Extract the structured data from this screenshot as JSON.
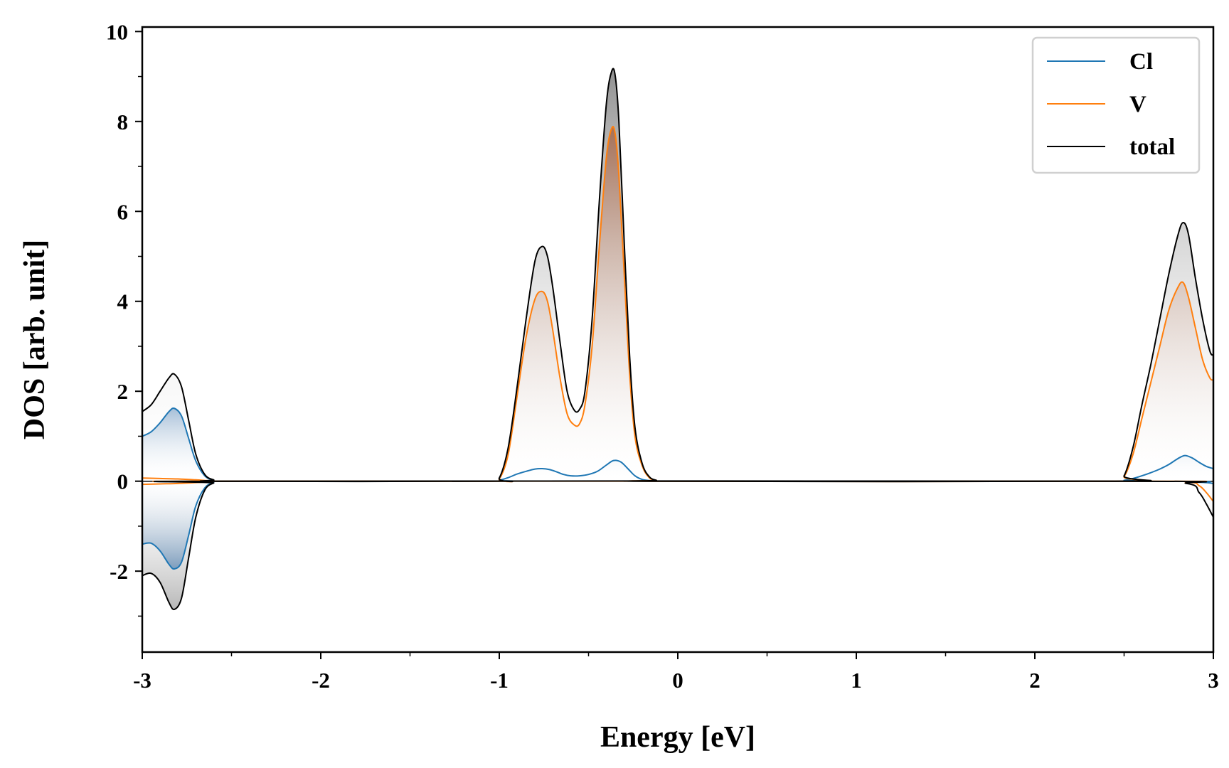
{
  "chart_data": {
    "type": "area",
    "title": "",
    "xlabel": "Energy [eV]",
    "ylabel": "DOS [arb. unit]",
    "xlim": [
      -3,
      3
    ],
    "ylim": [
      -3.8,
      10.1
    ],
    "xticks": [
      -3,
      -2,
      -1,
      0,
      1,
      2,
      3
    ],
    "xtick_labels": [
      "-3",
      "-2",
      "-1",
      "0",
      "1",
      "2",
      "3"
    ],
    "yticks": [
      -2,
      0,
      2,
      4,
      6,
      8,
      10
    ],
    "ytick_labels": [
      "-2",
      "0",
      "2",
      "4",
      "6",
      "8",
      "10"
    ],
    "grid": false,
    "legend_position": "top-right",
    "series": [
      {
        "name": "Cl",
        "color": "#1f77b4",
        "up": {
          "x": [
            -3.0,
            -2.95,
            -2.9,
            -2.85,
            -2.82,
            -2.78,
            -2.74,
            -2.7,
            -2.65,
            -2.6,
            -2.55,
            -1.05,
            -1.0,
            -0.95,
            -0.9,
            -0.85,
            -0.8,
            -0.76,
            -0.72,
            -0.68,
            -0.64,
            -0.6,
            -0.55,
            -0.5,
            -0.45,
            -0.4,
            -0.36,
            -0.32,
            -0.28,
            -0.24,
            -0.2,
            -0.15,
            -0.1,
            2.45,
            2.5,
            2.55,
            2.6,
            2.65,
            2.7,
            2.75,
            2.8,
            2.84,
            2.88,
            2.92,
            2.96,
            3.0
          ],
          "y": [
            1.0,
            1.1,
            1.3,
            1.55,
            1.62,
            1.45,
            0.95,
            0.45,
            0.12,
            0.02,
            0.0,
            0.0,
            0.02,
            0.08,
            0.16,
            0.22,
            0.27,
            0.28,
            0.26,
            0.21,
            0.15,
            0.12,
            0.12,
            0.15,
            0.22,
            0.36,
            0.46,
            0.43,
            0.28,
            0.12,
            0.04,
            0.01,
            0.0,
            0.0,
            0.02,
            0.06,
            0.12,
            0.19,
            0.27,
            0.37,
            0.5,
            0.57,
            0.52,
            0.42,
            0.33,
            0.28
          ]
        },
        "down": {
          "x": [
            -3.0,
            -2.95,
            -2.9,
            -2.85,
            -2.82,
            -2.78,
            -2.74,
            -2.7,
            -2.65,
            -2.6,
            -2.55,
            2.45,
            2.9,
            3.0
          ],
          "y": [
            -1.4,
            -1.38,
            -1.55,
            -1.85,
            -1.95,
            -1.8,
            -1.2,
            -0.55,
            -0.15,
            -0.03,
            0.0,
            0.0,
            -0.02,
            -0.05
          ]
        }
      },
      {
        "name": "V",
        "color": "#ff7f0e",
        "up": {
          "x": [
            -3.0,
            -2.9,
            -2.8,
            -2.7,
            -2.62,
            -2.55,
            -1.05,
            -1.0,
            -0.95,
            -0.9,
            -0.85,
            -0.8,
            -0.76,
            -0.73,
            -0.7,
            -0.66,
            -0.62,
            -0.58,
            -0.55,
            -0.52,
            -0.48,
            -0.44,
            -0.4,
            -0.37,
            -0.35,
            -0.33,
            -0.3,
            -0.27,
            -0.24,
            -0.2,
            -0.16,
            -0.12,
            -0.08,
            2.45,
            2.5,
            2.55,
            2.6,
            2.65,
            2.7,
            2.75,
            2.8,
            2.83,
            2.86,
            2.9,
            2.94,
            2.98,
            3.0
          ],
          "y": [
            0.07,
            0.06,
            0.05,
            0.03,
            0.01,
            0.0,
            0.0,
            0.05,
            0.6,
            1.9,
            3.2,
            4.05,
            4.22,
            4.0,
            3.35,
            2.3,
            1.5,
            1.25,
            1.28,
            1.7,
            3.0,
            5.2,
            7.2,
            7.85,
            7.7,
            6.8,
            4.6,
            2.4,
            1.0,
            0.35,
            0.08,
            0.02,
            0.0,
            0.0,
            0.1,
            0.6,
            1.4,
            2.2,
            3.0,
            3.8,
            4.3,
            4.42,
            4.1,
            3.4,
            2.7,
            2.3,
            2.25
          ]
        },
        "down": {
          "x": [
            -3.0,
            -2.9,
            -2.8,
            -2.7,
            -2.62,
            -2.55,
            2.45,
            2.85,
            2.92,
            2.96,
            3.0
          ],
          "y": [
            -0.07,
            -0.06,
            -0.05,
            -0.03,
            -0.01,
            0.0,
            0.0,
            -0.02,
            -0.1,
            -0.25,
            -0.45
          ]
        }
      },
      {
        "name": "total",
        "color": "#000000",
        "up": {
          "x": [
            -3.0,
            -2.95,
            -2.9,
            -2.85,
            -2.82,
            -2.78,
            -2.74,
            -2.7,
            -2.65,
            -2.6,
            -2.55,
            -1.05,
            -1.0,
            -0.95,
            -0.9,
            -0.85,
            -0.8,
            -0.76,
            -0.73,
            -0.7,
            -0.66,
            -0.62,
            -0.58,
            -0.55,
            -0.52,
            -0.48,
            -0.44,
            -0.4,
            -0.37,
            -0.35,
            -0.33,
            -0.3,
            -0.27,
            -0.24,
            -0.2,
            -0.16,
            -0.12,
            -0.08,
            2.45,
            2.5,
            2.55,
            2.6,
            2.65,
            2.7,
            2.75,
            2.8,
            2.83,
            2.86,
            2.9,
            2.94,
            2.98,
            3.0
          ],
          "y": [
            1.55,
            1.7,
            2.0,
            2.3,
            2.38,
            2.1,
            1.35,
            0.6,
            0.15,
            0.03,
            0.0,
            0.0,
            0.07,
            0.75,
            2.1,
            3.6,
            4.9,
            5.22,
            5.0,
            4.3,
            3.1,
            2.0,
            1.58,
            1.6,
            2.0,
            3.6,
            6.2,
            8.4,
            9.12,
            9.0,
            8.0,
            5.3,
            2.8,
            1.2,
            0.4,
            0.1,
            0.02,
            0.0,
            0.0,
            0.12,
            0.75,
            1.7,
            2.6,
            3.6,
            4.6,
            5.45,
            5.75,
            5.5,
            4.5,
            3.6,
            2.9,
            2.8
          ]
        },
        "down": {
          "x": [
            -3.0,
            -2.95,
            -2.9,
            -2.85,
            -2.82,
            -2.78,
            -2.74,
            -2.7,
            -2.65,
            -2.6,
            -2.55,
            2.45,
            2.85,
            2.92,
            2.96,
            3.0
          ],
          "y": [
            -2.1,
            -2.05,
            -2.25,
            -2.7,
            -2.85,
            -2.6,
            -1.7,
            -0.8,
            -0.2,
            -0.04,
            0.0,
            0.0,
            -0.05,
            -0.25,
            -0.5,
            -0.8
          ]
        }
      }
    ]
  }
}
